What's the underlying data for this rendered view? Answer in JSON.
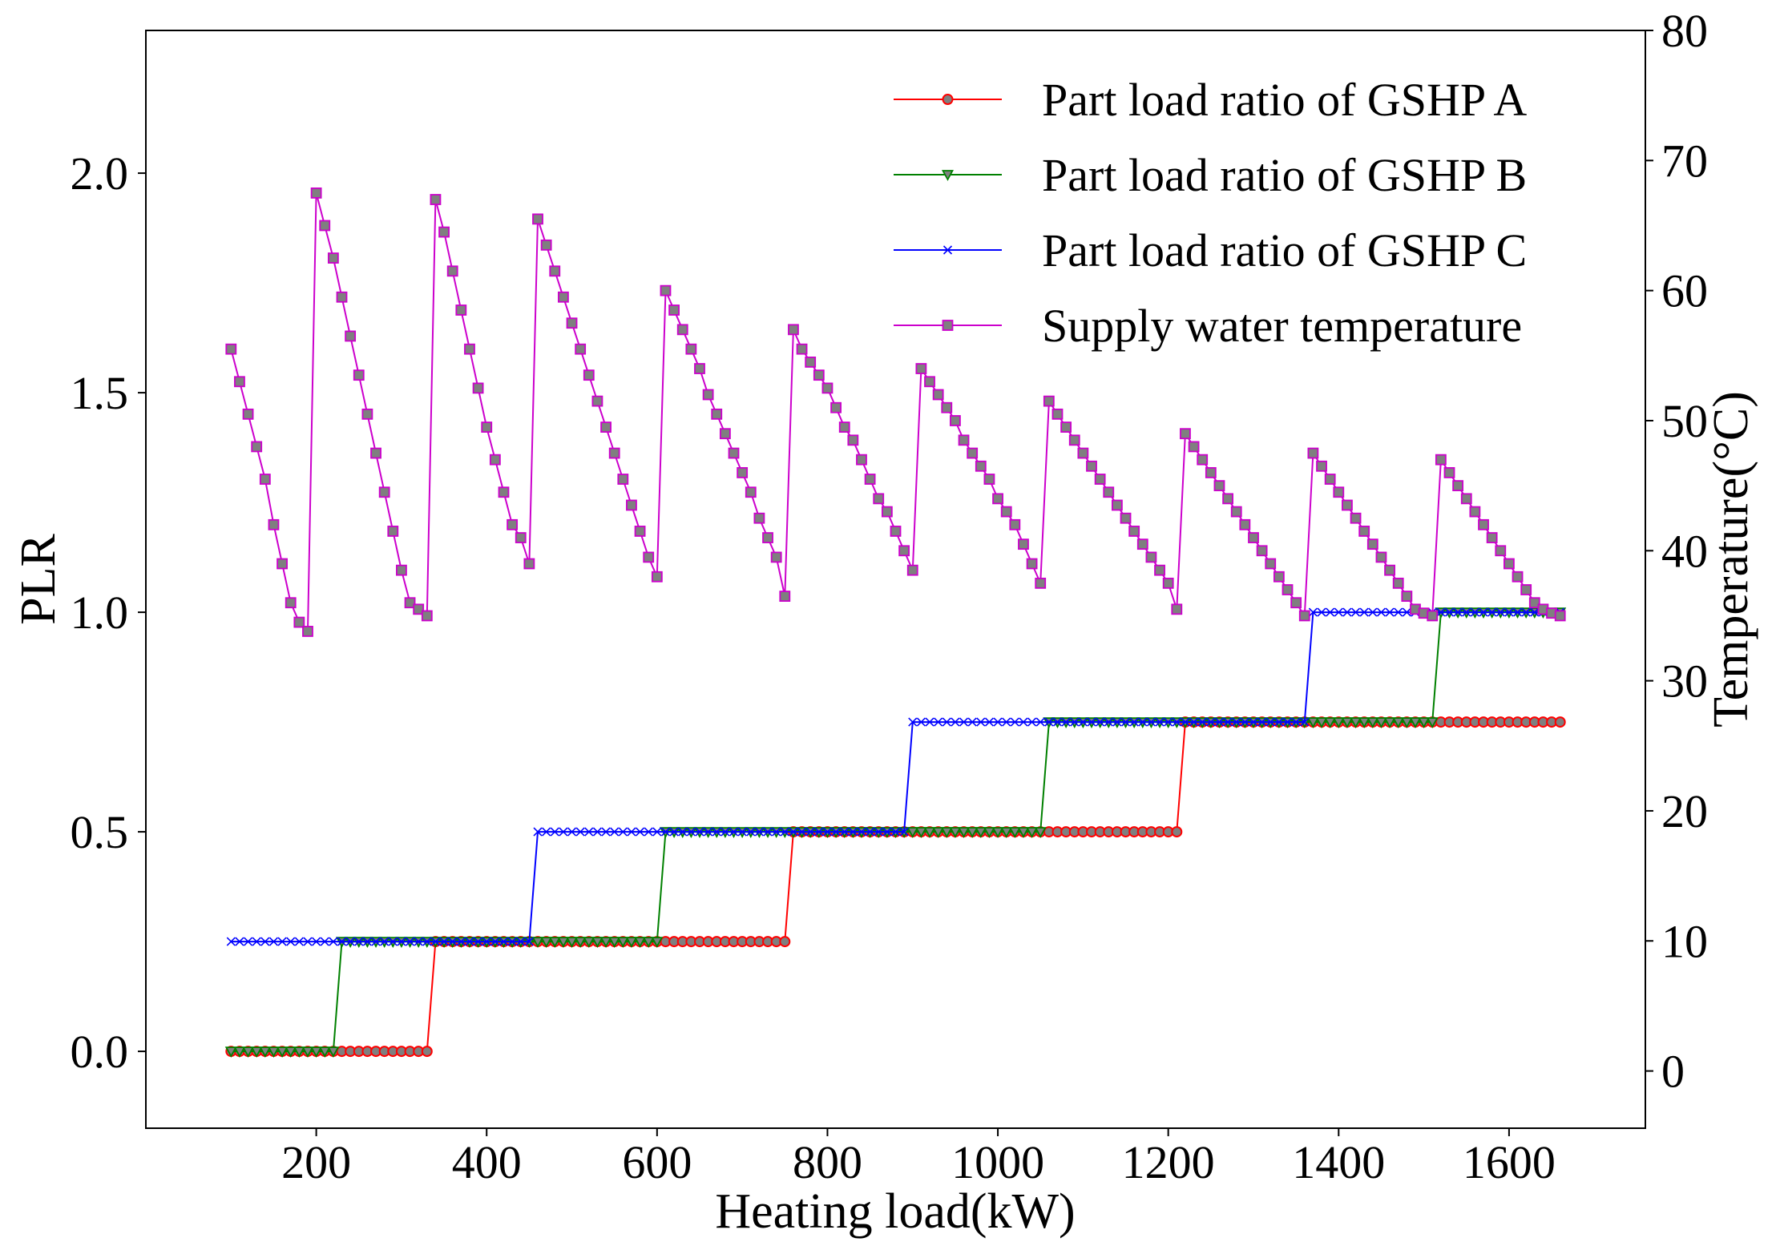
{
  "chart_data": {
    "type": "line",
    "title": "",
    "xlabel": "Heating load(kW)",
    "ylabel": "PLR",
    "ylabel_right": "Temperature(°C)",
    "xlim": [
      0,
      1760
    ],
    "ylim": [
      -0.175,
      2.325
    ],
    "ylim_right": [
      -4.4,
      80
    ],
    "xticks": [
      200,
      400,
      600,
      800,
      1000,
      1200,
      1400,
      1600
    ],
    "yticks": [
      0.0,
      0.5,
      1.0,
      1.5,
      2.0
    ],
    "yticks_right": [
      0,
      10,
      20,
      30,
      40,
      50,
      60,
      70,
      80
    ],
    "grid": false,
    "legend_position": "top-right",
    "x_start": 100,
    "x_step": 10,
    "x_end": 1660,
    "series": [
      {
        "name": "Part load ratio of GSHP A",
        "color": "#ff0000",
        "marker": "circle",
        "axis": "left",
        "steps": [
          [
            100,
            330,
            0.0
          ],
          [
            340,
            750,
            0.25
          ],
          [
            760,
            1210,
            0.5
          ],
          [
            1220,
            1660,
            0.75
          ]
        ]
      },
      {
        "name": "Part load ratio of GSHP B",
        "color": "#008000",
        "marker": "triangle-down",
        "axis": "left",
        "steps": [
          [
            100,
            220,
            0.0
          ],
          [
            230,
            600,
            0.25
          ],
          [
            610,
            1050,
            0.5
          ],
          [
            1060,
            1510,
            0.75
          ],
          [
            1520,
            1660,
            1.0
          ]
        ]
      },
      {
        "name": "Part load ratio of GSHP C",
        "color": "#0000ff",
        "marker": "x",
        "axis": "left",
        "steps": [
          [
            100,
            450,
            0.25
          ],
          [
            460,
            890,
            0.5
          ],
          [
            900,
            1360,
            0.75
          ],
          [
            1370,
            1660,
            1.0
          ]
        ]
      },
      {
        "name": "Supply water temperature",
        "color": "#cc00cc",
        "marker": "square",
        "axis": "right",
        "segments": [
          {
            "x0": 100,
            "x1": 190,
            "t": [
              55.5,
              53.0,
              50.5,
              48.0,
              45.5,
              42.0,
              39.0,
              36.0,
              34.5,
              33.8
            ]
          },
          {
            "x0": 200,
            "x1": 330,
            "t": [
              67.5,
              65.0,
              62.5,
              59.5,
              56.5,
              53.5,
              50.5,
              47.5,
              44.5,
              41.5,
              38.5,
              36.0,
              35.5,
              35.0
            ]
          },
          {
            "x0": 340,
            "x1": 450,
            "t": [
              67.0,
              64.5,
              61.5,
              58.5,
              55.5,
              52.5,
              49.5,
              47.0,
              44.5,
              42.0,
              41.0,
              39.0
            ]
          },
          {
            "x0": 460,
            "x1": 600,
            "t": [
              65.5,
              63.5,
              61.5,
              59.5,
              57.5,
              55.5,
              53.5,
              51.5,
              49.5,
              47.5,
              45.5,
              43.5,
              41.5,
              39.5,
              38.0
            ]
          },
          {
            "x0": 610,
            "x1": 750,
            "t": [
              60.0,
              58.5,
              57.0,
              55.5,
              54.0,
              52.0,
              50.5,
              49.0,
              47.5,
              46.0,
              44.5,
              42.5,
              41.0,
              39.5,
              36.5
            ]
          },
          {
            "x0": 760,
            "x1": 900,
            "t": [
              57.0,
              55.5,
              54.5,
              53.5,
              52.5,
              51.0,
              49.5,
              48.5,
              47.0,
              45.5,
              44.0,
              43.0,
              41.5,
              40.0,
              38.5
            ]
          },
          {
            "x0": 910,
            "x1": 1050,
            "t": [
              54.0,
              53.0,
              52.0,
              51.0,
              50.0,
              48.5,
              47.5,
              46.5,
              45.5,
              44.0,
              43.0,
              42.0,
              40.5,
              39.0,
              37.5
            ]
          },
          {
            "x0": 1060,
            "x1": 1210,
            "t": [
              51.5,
              50.5,
              49.5,
              48.5,
              47.5,
              46.5,
              45.5,
              44.5,
              43.5,
              42.5,
              41.5,
              40.5,
              39.5,
              38.5,
              37.5,
              35.5
            ]
          },
          {
            "x0": 1220,
            "x1": 1360,
            "t": [
              49.0,
              48.0,
              47.0,
              46.0,
              45.0,
              44.0,
              43.0,
              42.0,
              41.0,
              40.0,
              39.0,
              38.0,
              37.0,
              36.0,
              35.0
            ]
          },
          {
            "x0": 1370,
            "x1": 1510,
            "t": [
              47.5,
              46.5,
              45.5,
              44.5,
              43.5,
              42.5,
              41.5,
              40.5,
              39.5,
              38.5,
              37.5,
              36.5,
              35.5,
              35.2,
              35.0
            ]
          },
          {
            "x0": 1520,
            "x1": 1660,
            "t": [
              47.0,
              46.0,
              45.0,
              44.0,
              43.0,
              42.0,
              41.0,
              40.0,
              39.0,
              38.0,
              37.0,
              36.0,
              35.5,
              35.2,
              35.0
            ]
          }
        ]
      }
    ]
  }
}
